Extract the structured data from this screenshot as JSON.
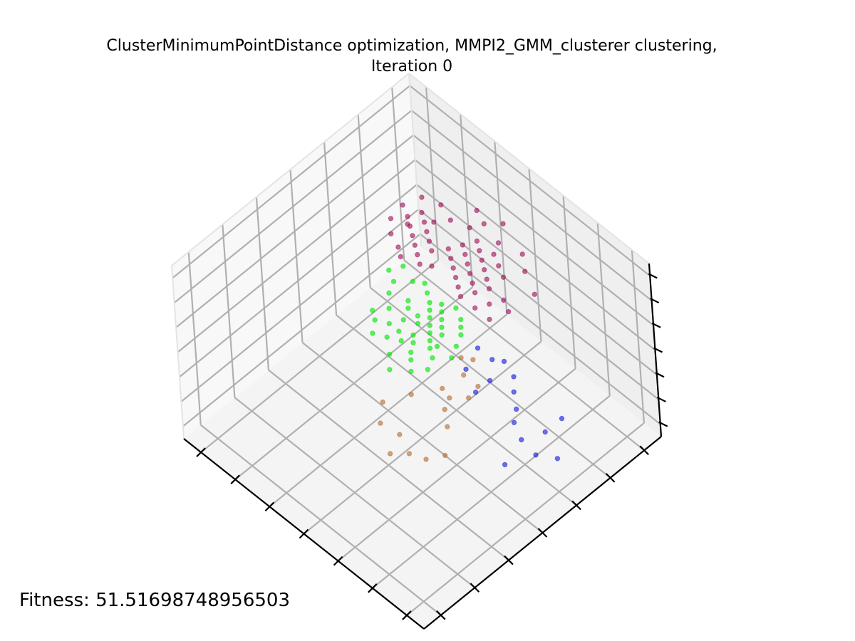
{
  "figure": {
    "title_line1": "ClusterMinimumPointDistance optimization, MMPI2_GMM_clusterer clustering,",
    "title_line2": "Iteration 0",
    "fitness_text": "Fitness: 51.51698748956503"
  },
  "chart_data": {
    "type": "scatter",
    "projection": "3d",
    "grid": true,
    "x_ticks": 7,
    "y_ticks": 7,
    "z_ticks": 7,
    "series": [
      {
        "color": "#1a1adc",
        "points": [
          [
            0.09,
            0.45,
            0.35
          ],
          [
            0.09,
            0.62,
            0.35
          ],
          [
            0.0,
            0.58,
            0.34
          ],
          [
            0.18,
            0.58,
            0.35
          ],
          [
            0.12,
            0.55,
            0.35
          ],
          [
            0.05,
            0.54,
            0.35
          ],
          [
            0.21,
            0.62,
            0.35
          ],
          [
            0.34,
            0.58,
            0.35
          ],
          [
            0.34,
            0.64,
            0.35
          ],
          [
            0.26,
            0.66,
            0.35
          ],
          [
            0.3,
            0.7,
            0.35
          ],
          [
            0.36,
            0.72,
            0.35
          ],
          [
            0.42,
            0.62,
            0.35
          ],
          [
            0.39,
            0.7,
            0.35
          ],
          [
            0.45,
            0.7,
            0.35
          ],
          [
            0.09,
            0.69,
            0.35
          ]
        ]
      },
      {
        "color": "#b46e32",
        "points": [
          [
            0.24,
            0.35,
            0.35
          ],
          [
            0.27,
            0.3,
            0.35
          ],
          [
            0.32,
            0.28,
            0.35
          ],
          [
            0.36,
            0.24,
            0.35
          ],
          [
            0.39,
            0.31,
            0.35
          ],
          [
            0.31,
            0.43,
            0.35
          ],
          [
            0.36,
            0.47,
            0.35
          ],
          [
            0.38,
            0.51,
            0.35
          ],
          [
            0.34,
            0.55,
            0.35
          ],
          [
            0.42,
            0.52,
            0.35
          ],
          [
            0.41,
            0.6,
            0.35
          ],
          [
            0.35,
            0.6,
            0.35
          ],
          [
            0.43,
            0.66,
            0.35
          ],
          [
            0.46,
            0.64,
            0.35
          ],
          [
            0.46,
            0.3,
            0.35
          ],
          [
            0.51,
            0.36,
            0.35
          ],
          [
            0.47,
            0.44,
            0.35
          ]
        ]
      },
      {
        "color": "#00e600",
        "points": [
          [
            0.56,
            0.53,
            0.35
          ],
          [
            0.58,
            0.55,
            0.35
          ],
          [
            0.6,
            0.58,
            0.35
          ],
          [
            0.62,
            0.6,
            0.35
          ],
          [
            0.64,
            0.64,
            0.35
          ],
          [
            0.66,
            0.66,
            0.35
          ],
          [
            0.55,
            0.6,
            0.35
          ],
          [
            0.57,
            0.62,
            0.35
          ],
          [
            0.59,
            0.64,
            0.35
          ],
          [
            0.61,
            0.66,
            0.35
          ],
          [
            0.63,
            0.68,
            0.35
          ],
          [
            0.65,
            0.7,
            0.35
          ],
          [
            0.52,
            0.58,
            0.35
          ],
          [
            0.54,
            0.62,
            0.35
          ],
          [
            0.56,
            0.66,
            0.35
          ],
          [
            0.58,
            0.68,
            0.35
          ],
          [
            0.6,
            0.7,
            0.35
          ],
          [
            0.62,
            0.72,
            0.35
          ],
          [
            0.68,
            0.62,
            0.35
          ],
          [
            0.7,
            0.66,
            0.35
          ],
          [
            0.72,
            0.68,
            0.35
          ],
          [
            0.53,
            0.5,
            0.35
          ],
          [
            0.5,
            0.54,
            0.35
          ],
          [
            0.66,
            0.58,
            0.35
          ],
          [
            0.7,
            0.58,
            0.35
          ],
          [
            0.74,
            0.62,
            0.35
          ],
          [
            0.77,
            0.58,
            0.35
          ],
          [
            0.78,
            0.66,
            0.35
          ],
          [
            0.8,
            0.7,
            0.35
          ],
          [
            0.84,
            0.72,
            0.35
          ],
          [
            0.82,
            0.76,
            0.35
          ],
          [
            0.62,
            0.5,
            0.35
          ],
          [
            0.58,
            0.46,
            0.35
          ],
          [
            0.48,
            0.62,
            0.35
          ],
          [
            0.5,
            0.66,
            0.35
          ],
          [
            0.52,
            0.7,
            0.35
          ],
          [
            0.54,
            0.72,
            0.35
          ],
          [
            0.56,
            0.74,
            0.35
          ],
          [
            0.6,
            0.76,
            0.35
          ],
          [
            0.64,
            0.74,
            0.35
          ],
          [
            0.67,
            0.72,
            0.35
          ],
          [
            0.7,
            0.74,
            0.35
          ],
          [
            0.73,
            0.76,
            0.35
          ],
          [
            0.76,
            0.74,
            0.35
          ],
          [
            0.63,
            0.56,
            0.35
          ],
          [
            0.67,
            0.54,
            0.35
          ],
          [
            0.71,
            0.52,
            0.35
          ],
          [
            0.74,
            0.56,
            0.35
          ]
        ]
      },
      {
        "color": "#a0145a",
        "points": [
          [
            0.62,
            0.8,
            0.35
          ],
          [
            0.65,
            0.82,
            0.35
          ],
          [
            0.68,
            0.84,
            0.35
          ],
          [
            0.71,
            0.86,
            0.35
          ],
          [
            0.74,
            0.88,
            0.35
          ],
          [
            0.77,
            0.9,
            0.35
          ],
          [
            0.6,
            0.84,
            0.35
          ],
          [
            0.63,
            0.86,
            0.35
          ],
          [
            0.66,
            0.88,
            0.35
          ],
          [
            0.69,
            0.9,
            0.35
          ],
          [
            0.72,
            0.92,
            0.35
          ],
          [
            0.75,
            0.94,
            0.35
          ],
          [
            0.58,
            0.88,
            0.35
          ],
          [
            0.61,
            0.9,
            0.35
          ],
          [
            0.64,
            0.92,
            0.35
          ],
          [
            0.67,
            0.94,
            0.35
          ],
          [
            0.7,
            0.96,
            0.35
          ],
          [
            0.73,
            0.98,
            0.35
          ],
          [
            0.8,
            0.86,
            0.35
          ],
          [
            0.83,
            0.88,
            0.35
          ],
          [
            0.86,
            0.9,
            0.35
          ],
          [
            0.89,
            0.92,
            0.35
          ],
          [
            0.92,
            0.94,
            0.35
          ],
          [
            0.85,
            0.84,
            0.35
          ],
          [
            0.88,
            0.86,
            0.35
          ],
          [
            0.91,
            0.88,
            0.35
          ],
          [
            0.94,
            0.9,
            0.35
          ],
          [
            0.79,
            0.8,
            0.35
          ],
          [
            0.82,
            0.82,
            0.35
          ],
          [
            0.85,
            0.78,
            0.35
          ],
          [
            0.88,
            0.8,
            0.35
          ],
          [
            0.76,
            0.82,
            0.35
          ],
          [
            0.56,
            0.8,
            0.35
          ],
          [
            0.54,
            0.84,
            0.35
          ],
          [
            0.52,
            0.88,
            0.35
          ],
          [
            0.5,
            0.8,
            0.35
          ],
          [
            0.48,
            0.86,
            0.35
          ],
          [
            0.47,
            0.96,
            0.35
          ],
          [
            0.55,
            1.0,
            0.35
          ],
          [
            0.6,
            1.04,
            0.35
          ],
          [
            0.68,
            1.02,
            0.35
          ],
          [
            0.78,
            1.0,
            0.35
          ],
          [
            0.84,
            0.98,
            0.35
          ],
          [
            0.9,
            1.0,
            0.35
          ],
          [
            0.96,
            0.98,
            0.35
          ],
          [
            0.98,
            0.92,
            0.35
          ],
          [
            0.97,
            0.86,
            0.35
          ],
          [
            0.93,
            0.82,
            0.35
          ],
          [
            0.72,
            1.08,
            0.35
          ],
          [
            0.76,
            1.04,
            0.35
          ],
          [
            0.81,
            1.06,
            0.35
          ],
          [
            0.66,
            0.98,
            0.35
          ],
          [
            0.62,
            0.96,
            0.35
          ],
          [
            0.58,
            0.94,
            0.35
          ],
          [
            0.87,
            0.94,
            0.35
          ],
          [
            0.92,
            0.88,
            0.35
          ]
        ]
      }
    ]
  }
}
